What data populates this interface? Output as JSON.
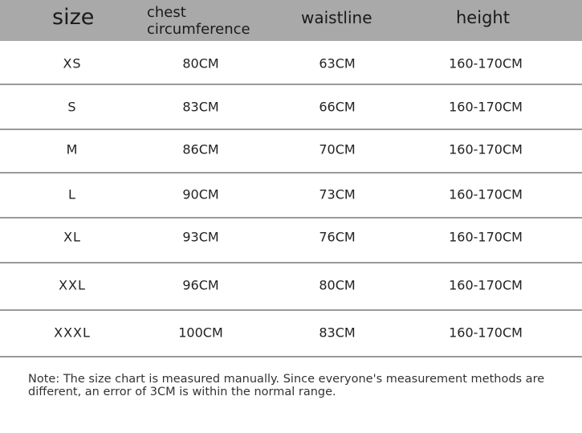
{
  "header": {
    "size": "size",
    "chest_line1": "chest",
    "chest_line2": "circumference",
    "waistline": "waistline",
    "height": "height"
  },
  "rows": [
    {
      "size": "XS",
      "chest": "80CM",
      "waist": "63CM",
      "height": "160-170CM"
    },
    {
      "size": "S",
      "chest": "83CM",
      "waist": "66CM",
      "height": "160-170CM"
    },
    {
      "size": "M",
      "chest": "86CM",
      "waist": "70CM",
      "height": "160-170CM"
    },
    {
      "size": "L",
      "chest": "90CM",
      "waist": "73CM",
      "height": "160-170CM"
    },
    {
      "size": "XL",
      "chest": "93CM",
      "waist": "76CM",
      "height": "160-170CM"
    },
    {
      "size": "XXL",
      "chest": "96CM",
      "waist": "80CM",
      "height": "160-170CM"
    },
    {
      "size": "XXXL",
      "chest": "100CM",
      "waist": "83CM",
      "height": "160-170CM"
    }
  ],
  "note": "Note: The size chart is measured manually. Since everyone's measurement methods are different, an error of 3CM is within the normal range.",
  "colors": {
    "header_bg": "#a9a9a9",
    "divider": "#9a9a9a"
  }
}
